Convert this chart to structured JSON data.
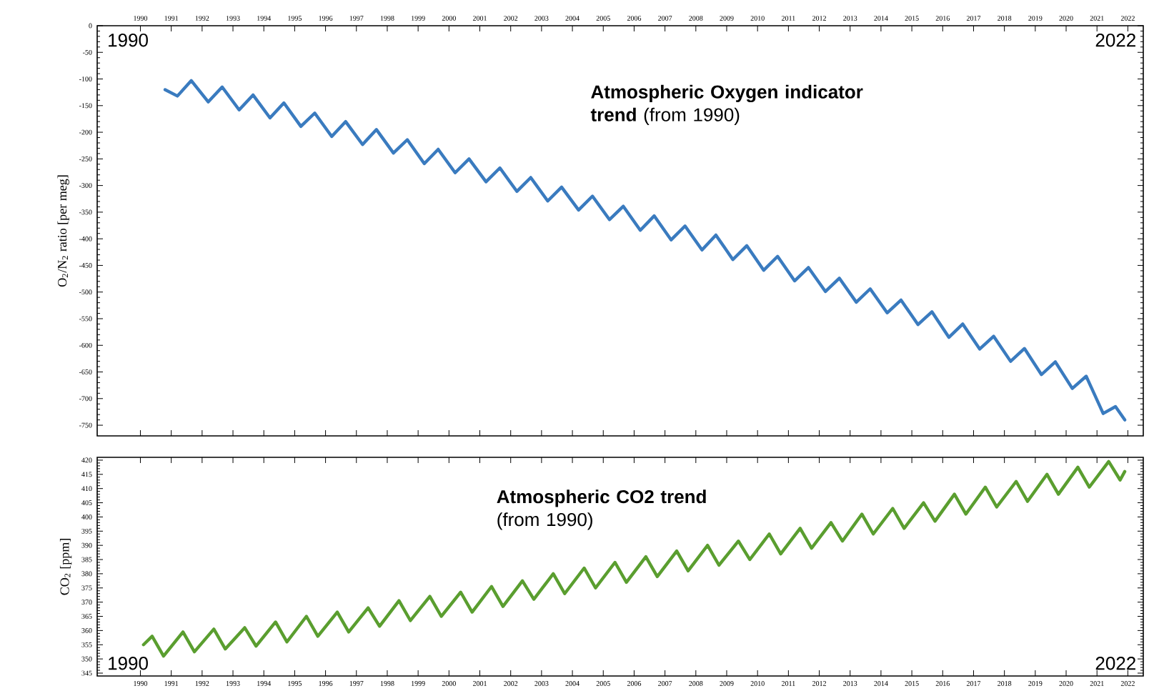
{
  "chart_data": [
    {
      "type": "line",
      "ylabel": "O$_{2}$/N$_{2}$ ratio [per meg]",
      "annotations": [
        "1990",
        "2022",
        "**Atmospheric Oxygen indicator trend** (from 1990)"
      ],
      "xlim": [
        1988.6,
        2022.5
      ],
      "xticks": [
        1990,
        1991,
        1992,
        1993,
        1994,
        1995,
        1996,
        1997,
        1998,
        1999,
        2000,
        2001,
        2002,
        2003,
        2004,
        2005,
        2006,
        2007,
        2008,
        2009,
        2010,
        2011,
        2012,
        2013,
        2014,
        2015,
        2016,
        2017,
        2018,
        2019,
        2020,
        2021,
        2022
      ],
      "ylim": [
        -770,
        0
      ],
      "yticks": [
        0,
        -50,
        -100,
        -150,
        -200,
        -250,
        -300,
        -350,
        -400,
        -450,
        -500,
        -550,
        -600,
        -650,
        -700,
        -750
      ],
      "series": [
        {
          "color": "#3a7bbf",
          "x": [
            1990.8,
            1991.2,
            1991.65,
            1992.2,
            1992.65,
            1993.2,
            1993.65,
            1994.2,
            1994.65,
            1995.2,
            1995.65,
            1996.2,
            1996.65,
            1997.2,
            1997.65,
            1998.2,
            1998.65,
            1999.2,
            1999.65,
            2000.2,
            2000.65,
            2001.2,
            2001.65,
            2002.2,
            2002.65,
            2003.2,
            2003.65,
            2004.2,
            2004.65,
            2005.2,
            2005.65,
            2006.2,
            2006.65,
            2007.2,
            2007.65,
            2008.2,
            2008.65,
            2009.2,
            2009.65,
            2010.2,
            2010.65,
            2011.2,
            2011.65,
            2012.2,
            2012.65,
            2013.2,
            2013.65,
            2014.2,
            2014.65,
            2015.2,
            2015.65,
            2016.2,
            2016.65,
            2017.2,
            2017.65,
            2018.2,
            2018.65,
            2019.2,
            2019.65,
            2020.2,
            2020.65,
            2021.2,
            2021.6,
            2021.9
          ],
          "values": [
            -120,
            -132,
            -103,
            -143,
            -115,
            -158,
            -130,
            -173,
            -145,
            -189,
            -164,
            -208,
            -180,
            -223,
            -195,
            -239,
            -214,
            -259,
            -232,
            -276,
            -250,
            -293,
            -267,
            -311,
            -285,
            -329,
            -303,
            -346,
            -320,
            -364,
            -339,
            -384,
            -357,
            -402,
            -376,
            -421,
            -393,
            -439,
            -413,
            -459,
            -433,
            -479,
            -454,
            -499,
            -474,
            -519,
            -494,
            -539,
            -515,
            -561,
            -537,
            -585,
            -560,
            -607,
            -583,
            -630,
            -606,
            -655,
            -631,
            -681,
            -658,
            -728,
            -715,
            -740
          ]
        }
      ]
    },
    {
      "type": "line",
      "ylabel": "CO$_{2}$ [ppm]",
      "annotations": [
        "1990",
        "2022",
        "**Atmospheric CO2 trend** (from 1990)"
      ],
      "xlim": [
        1988.6,
        2022.5
      ],
      "xticks": [
        1990,
        1991,
        1992,
        1993,
        1994,
        1995,
        1996,
        1997,
        1998,
        1999,
        2000,
        2001,
        2002,
        2003,
        2004,
        2005,
        2006,
        2007,
        2008,
        2009,
        2010,
        2011,
        2012,
        2013,
        2014,
        2015,
        2016,
        2017,
        2018,
        2019,
        2020,
        2021,
        2022
      ],
      "ylim": [
        344,
        421
      ],
      "yticks": [
        345,
        350,
        355,
        360,
        365,
        370,
        375,
        380,
        385,
        390,
        395,
        400,
        405,
        410,
        415,
        420
      ],
      "series": [
        {
          "color": "#5a9e2f",
          "x": [
            1990.1,
            1990.38,
            1990.75,
            1991.38,
            1991.75,
            1992.38,
            1992.75,
            1993.38,
            1993.75,
            1994.38,
            1994.75,
            1995.38,
            1995.75,
            1996.38,
            1996.75,
            1997.38,
            1997.75,
            1998.38,
            1998.75,
            1999.38,
            1999.75,
            2000.38,
            2000.75,
            2001.38,
            2001.75,
            2002.38,
            2002.75,
            2003.38,
            2003.75,
            2004.38,
            2004.75,
            2005.38,
            2005.75,
            2006.38,
            2006.75,
            2007.38,
            2007.75,
            2008.38,
            2008.75,
            2009.38,
            2009.75,
            2010.38,
            2010.75,
            2011.38,
            2011.75,
            2012.38,
            2012.75,
            2013.38,
            2013.75,
            2014.38,
            2014.75,
            2015.38,
            2015.75,
            2016.38,
            2016.75,
            2017.38,
            2017.75,
            2018.38,
            2018.75,
            2019.38,
            2019.75,
            2020.38,
            2020.75,
            2021.38,
            2021.75,
            2021.9
          ],
          "values": [
            355,
            358,
            351,
            359.5,
            352.5,
            360.5,
            353.5,
            361,
            354.5,
            363,
            356,
            365,
            358,
            366.5,
            359.5,
            368,
            361.5,
            370.5,
            363.5,
            372,
            365,
            373.5,
            366.5,
            375.5,
            368.5,
            377.5,
            371,
            380,
            373,
            382,
            375,
            384,
            377,
            386,
            379,
            388,
            381,
            390,
            383,
            391.5,
            385,
            394,
            387,
            396,
            389,
            398,
            391.5,
            401,
            394,
            403,
            396,
            405,
            398.5,
            408,
            401,
            410.5,
            403.5,
            412.5,
            405.5,
            415,
            408,
            417.5,
            410.5,
            419.5,
            413,
            416
          ]
        }
      ]
    }
  ]
}
